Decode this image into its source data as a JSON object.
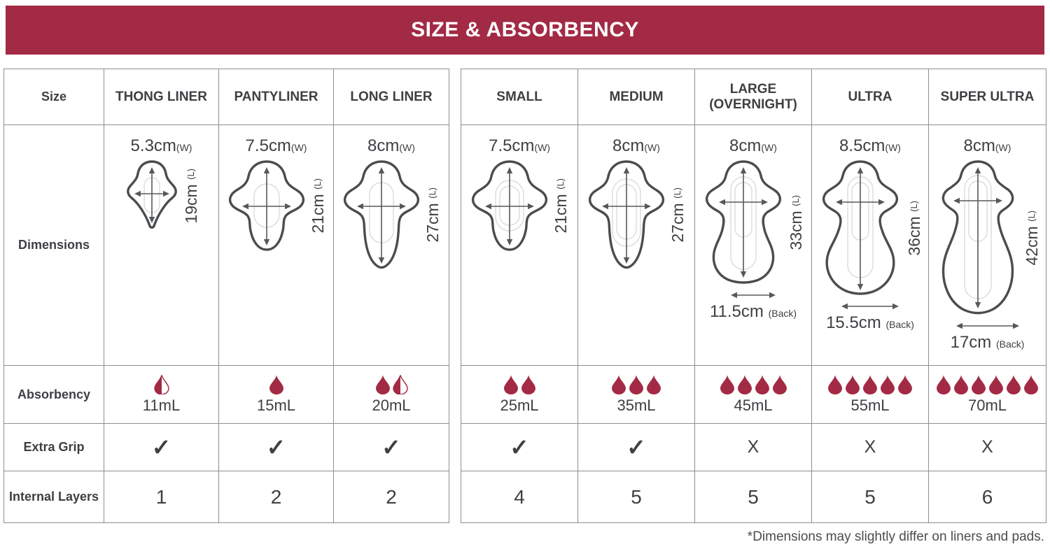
{
  "header": {
    "title": "SIZE & ABSORBENCY"
  },
  "colors": {
    "accent": "#A32A44",
    "text": "#3E4044",
    "border": "#8E8E8E"
  },
  "row_labels": {
    "size": "Size",
    "dimensions": "Dimensions",
    "absorbency": "Absorbency",
    "extra_grip": "Extra Grip",
    "internal_layers": "Internal Layers"
  },
  "footnote": "*Dimensions may slightly differ on liners and pads.",
  "left_table": {
    "columns": [
      {
        "header": "THONG LINER",
        "width": "5.3cm",
        "width_suffix": "(W)",
        "length": "19cm",
        "length_suffix": "(L)",
        "absorbency": {
          "full": 0,
          "half": 1,
          "ml": "11mL"
        },
        "extra_grip": "✓",
        "internal_layers": "1"
      },
      {
        "header": "PANTYLINER",
        "width": "7.5cm",
        "width_suffix": "(W)",
        "length": "21cm",
        "length_suffix": "(L)",
        "absorbency": {
          "full": 1,
          "half": 0,
          "ml": "15mL"
        },
        "extra_grip": "✓",
        "internal_layers": "2"
      },
      {
        "header": "LONG LINER",
        "width": "8cm",
        "width_suffix": "(W)",
        "length": "27cm",
        "length_suffix": "(L)",
        "absorbency": {
          "full": 1,
          "half": 1,
          "ml": "20mL"
        },
        "extra_grip": "✓",
        "internal_layers": "2"
      }
    ]
  },
  "right_table": {
    "columns": [
      {
        "header": "SMALL",
        "width": "7.5cm",
        "width_suffix": "(W)",
        "length": "21cm",
        "length_suffix": "(L)",
        "absorbency": {
          "full": 2,
          "half": 0,
          "ml": "25mL"
        },
        "extra_grip": "✓",
        "internal_layers": "4"
      },
      {
        "header": "MEDIUM",
        "width": "8cm",
        "width_suffix": "(W)",
        "length": "27cm",
        "length_suffix": "(L)",
        "absorbency": {
          "full": 3,
          "half": 0,
          "ml": "35mL"
        },
        "extra_grip": "✓",
        "internal_layers": "5"
      },
      {
        "header": "LARGE\n(OVERNIGHT)",
        "width": "8cm",
        "width_suffix": "(W)",
        "length": "33cm",
        "length_suffix": "(L)",
        "back": "11.5cm",
        "back_suffix": "(Back)",
        "absorbency": {
          "full": 4,
          "half": 0,
          "ml": "45mL"
        },
        "extra_grip": "X",
        "internal_layers": "5"
      },
      {
        "header": "ULTRA",
        "width": "8.5cm",
        "width_suffix": "(W)",
        "length": "36cm",
        "length_suffix": "(L)",
        "back": "15.5cm",
        "back_suffix": "(Back)",
        "absorbency": {
          "full": 5,
          "half": 0,
          "ml": "55mL"
        },
        "extra_grip": "X",
        "internal_layers": "5"
      },
      {
        "header": "SUPER ULTRA",
        "width": "8cm",
        "width_suffix": "(W)",
        "length": "42cm",
        "length_suffix": "(L)",
        "back": "17cm",
        "back_suffix": "(Back)",
        "absorbency": {
          "full": 6,
          "half": 0,
          "ml": "70mL"
        },
        "extra_grip": "X",
        "internal_layers": "6"
      }
    ]
  }
}
